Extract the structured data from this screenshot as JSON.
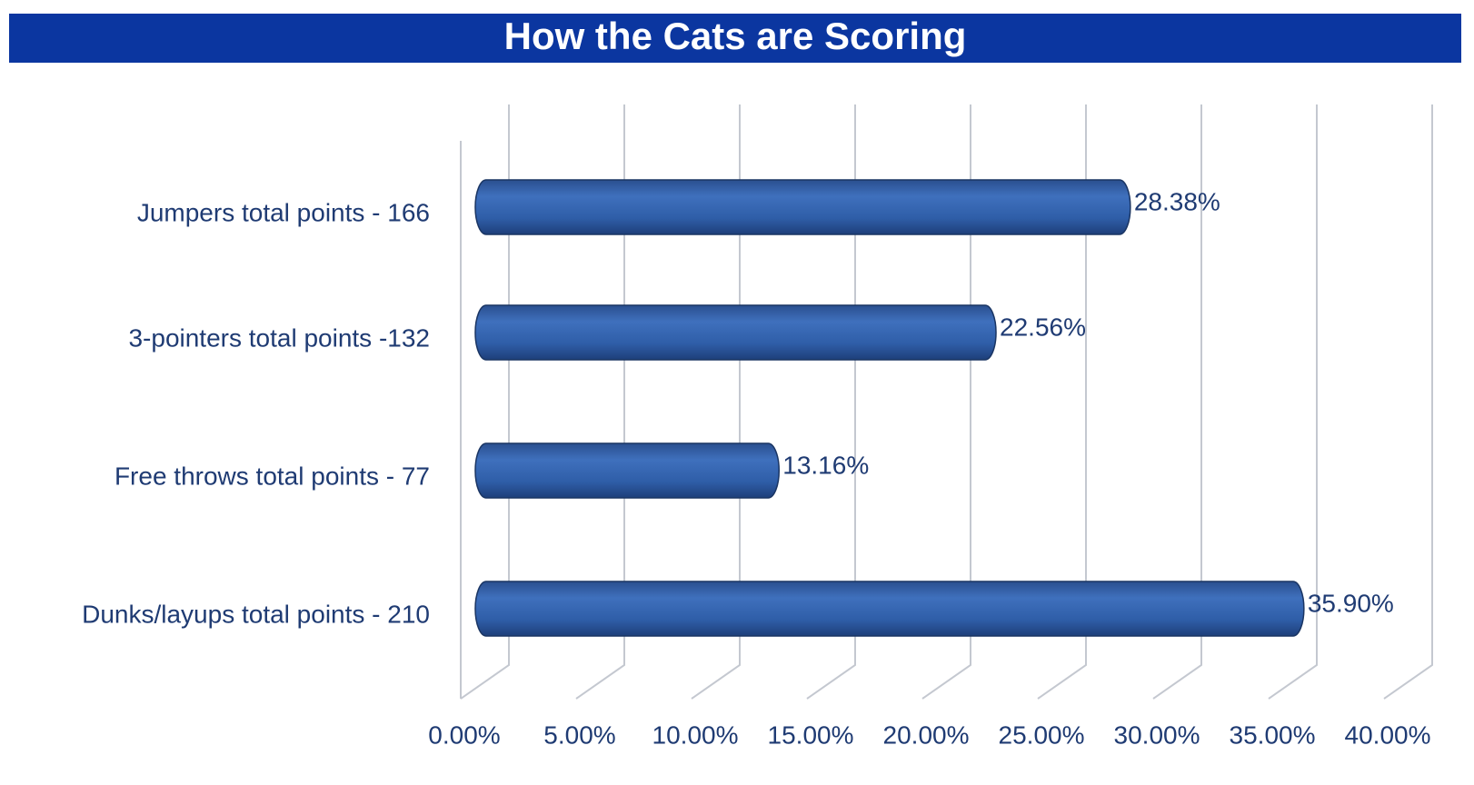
{
  "chart_data": {
    "type": "bar",
    "orientation": "horizontal",
    "title": "How the Cats are Scoring",
    "categories": [
      "Jumpers total points - 166",
      "3-pointers total points -132",
      "Free throws total points - 77",
      "Dunks/layups total points - 210"
    ],
    "values": [
      28.38,
      22.56,
      13.16,
      35.9
    ],
    "value_labels": [
      "28.38%",
      "22.56%",
      "13.16%",
      "35.90%"
    ],
    "color": "#2f5ea8",
    "xlim": [
      0,
      40
    ],
    "xticks": [
      {
        "value": 0,
        "label": "0.00%"
      },
      {
        "value": 5,
        "label": "5.00%"
      },
      {
        "value": 10,
        "label": "10.00%"
      },
      {
        "value": 15,
        "label": "15.00%"
      },
      {
        "value": 20,
        "label": "20.00%"
      },
      {
        "value": 25,
        "label": "25.00%"
      },
      {
        "value": 30,
        "label": "30.00%"
      },
      {
        "value": 35,
        "label": "35.00%"
      },
      {
        "value": 40,
        "label": "40.00%"
      }
    ],
    "grid": true
  }
}
